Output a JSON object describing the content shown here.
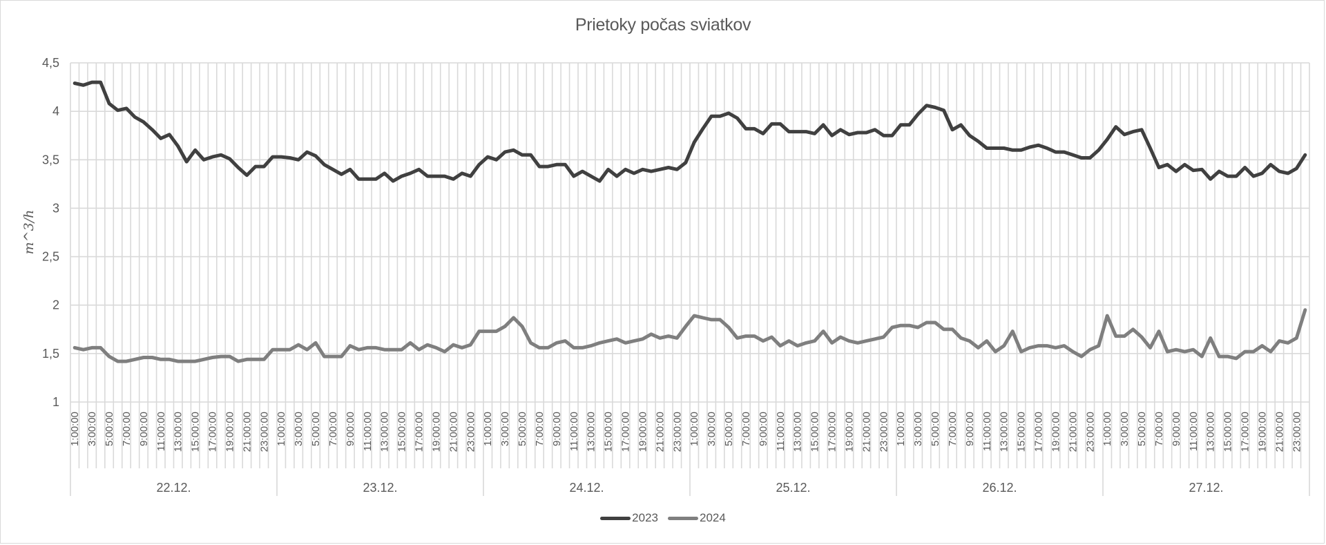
{
  "chart_data": {
    "type": "line",
    "title": "Prietoky počas sviatkov",
    "xlabel": "",
    "ylabel": "m^3/h",
    "ylim": [
      1,
      4.5
    ],
    "y_ticks": [
      "1",
      "1,5",
      "2",
      "2,5",
      "3",
      "3,5",
      "4",
      "4,5"
    ],
    "y_tick_values": [
      1,
      1.5,
      2,
      2.5,
      3,
      3.5,
      4,
      4.5
    ],
    "grid": true,
    "legend_position": "bottom",
    "points_per_day": 24,
    "hour_tick_labels": [
      "1:00:00",
      "3:00:00",
      "5:00:00",
      "7:00:00",
      "9:00:00",
      "11:00:00",
      "13:00:00",
      "15:00:00",
      "17:00:00",
      "19:00:00",
      "21:00:00",
      "23:00:00"
    ],
    "days": [
      "22.12.",
      "23.12.",
      "24.12.",
      "25.12.",
      "26.12.",
      "27.12."
    ],
    "series": [
      {
        "name": "2023",
        "color": "#404040",
        "values": [
          4.29,
          4.27,
          4.3,
          4.3,
          4.08,
          4.01,
          4.03,
          3.94,
          3.89,
          3.81,
          3.72,
          3.76,
          3.64,
          3.48,
          3.6,
          3.5,
          3.53,
          3.55,
          3.51,
          3.42,
          3.34,
          3.43,
          3.43,
          3.53,
          3.53,
          3.52,
          3.5,
          3.58,
          3.54,
          3.45,
          3.4,
          3.35,
          3.4,
          3.3,
          3.3,
          3.3,
          3.36,
          3.28,
          3.33,
          3.36,
          3.4,
          3.33,
          3.33,
          3.33,
          3.3,
          3.36,
          3.33,
          3.45,
          3.53,
          3.5,
          3.58,
          3.6,
          3.55,
          3.55,
          3.43,
          3.43,
          3.45,
          3.45,
          3.33,
          3.38,
          3.33,
          3.28,
          3.4,
          3.33,
          3.4,
          3.36,
          3.4,
          3.38,
          3.4,
          3.42,
          3.4,
          3.47,
          3.68,
          3.82,
          3.95,
          3.95,
          3.98,
          3.93,
          3.82,
          3.82,
          3.77,
          3.87,
          3.87,
          3.79,
          3.79,
          3.79,
          3.77,
          3.86,
          3.75,
          3.81,
          3.76,
          3.78,
          3.78,
          3.81,
          3.75,
          3.75,
          3.86,
          3.86,
          3.97,
          4.06,
          4.04,
          4.01,
          3.81,
          3.86,
          3.75,
          3.69,
          3.62,
          3.62,
          3.62,
          3.6,
          3.6,
          3.63,
          3.65,
          3.62,
          3.58,
          3.58,
          3.55,
          3.52,
          3.52,
          3.6,
          3.71,
          3.84,
          3.76,
          3.79,
          3.81,
          3.62,
          3.42,
          3.45,
          3.38,
          3.45,
          3.39,
          3.4,
          3.3,
          3.38,
          3.33,
          3.33,
          3.42,
          3.33,
          3.36,
          3.45,
          3.38,
          3.36,
          3.41,
          3.55
        ]
      },
      {
        "name": "2024",
        "color": "#7f7f7f",
        "values": [
          1.56,
          1.54,
          1.56,
          1.56,
          1.47,
          1.42,
          1.42,
          1.44,
          1.46,
          1.46,
          1.44,
          1.44,
          1.42,
          1.42,
          1.42,
          1.44,
          1.46,
          1.47,
          1.47,
          1.42,
          1.44,
          1.44,
          1.44,
          1.54,
          1.54,
          1.54,
          1.59,
          1.54,
          1.61,
          1.47,
          1.47,
          1.47,
          1.58,
          1.54,
          1.56,
          1.56,
          1.54,
          1.54,
          1.54,
          1.61,
          1.54,
          1.59,
          1.56,
          1.52,
          1.59,
          1.56,
          1.59,
          1.73,
          1.73,
          1.73,
          1.78,
          1.87,
          1.78,
          1.61,
          1.56,
          1.56,
          1.61,
          1.63,
          1.56,
          1.56,
          1.58,
          1.61,
          1.63,
          1.65,
          1.61,
          1.63,
          1.65,
          1.7,
          1.66,
          1.68,
          1.66,
          1.78,
          1.89,
          1.87,
          1.85,
          1.85,
          1.77,
          1.66,
          1.68,
          1.68,
          1.63,
          1.67,
          1.58,
          1.63,
          1.58,
          1.61,
          1.63,
          1.73,
          1.61,
          1.67,
          1.63,
          1.61,
          1.63,
          1.65,
          1.67,
          1.77,
          1.79,
          1.79,
          1.77,
          1.82,
          1.82,
          1.75,
          1.75,
          1.66,
          1.63,
          1.56,
          1.63,
          1.52,
          1.58,
          1.73,
          1.52,
          1.56,
          1.58,
          1.58,
          1.56,
          1.58,
          1.52,
          1.47,
          1.54,
          1.58,
          1.89,
          1.68,
          1.68,
          1.75,
          1.67,
          1.56,
          1.73,
          1.52,
          1.54,
          1.52,
          1.54,
          1.47,
          1.66,
          1.47,
          1.47,
          1.45,
          1.52,
          1.52,
          1.58,
          1.52,
          1.63,
          1.61,
          1.66,
          1.95
        ]
      }
    ]
  },
  "legend": {
    "items": [
      {
        "label": "2023",
        "color": "#404040"
      },
      {
        "label": "2024",
        "color": "#7f7f7f"
      }
    ]
  }
}
